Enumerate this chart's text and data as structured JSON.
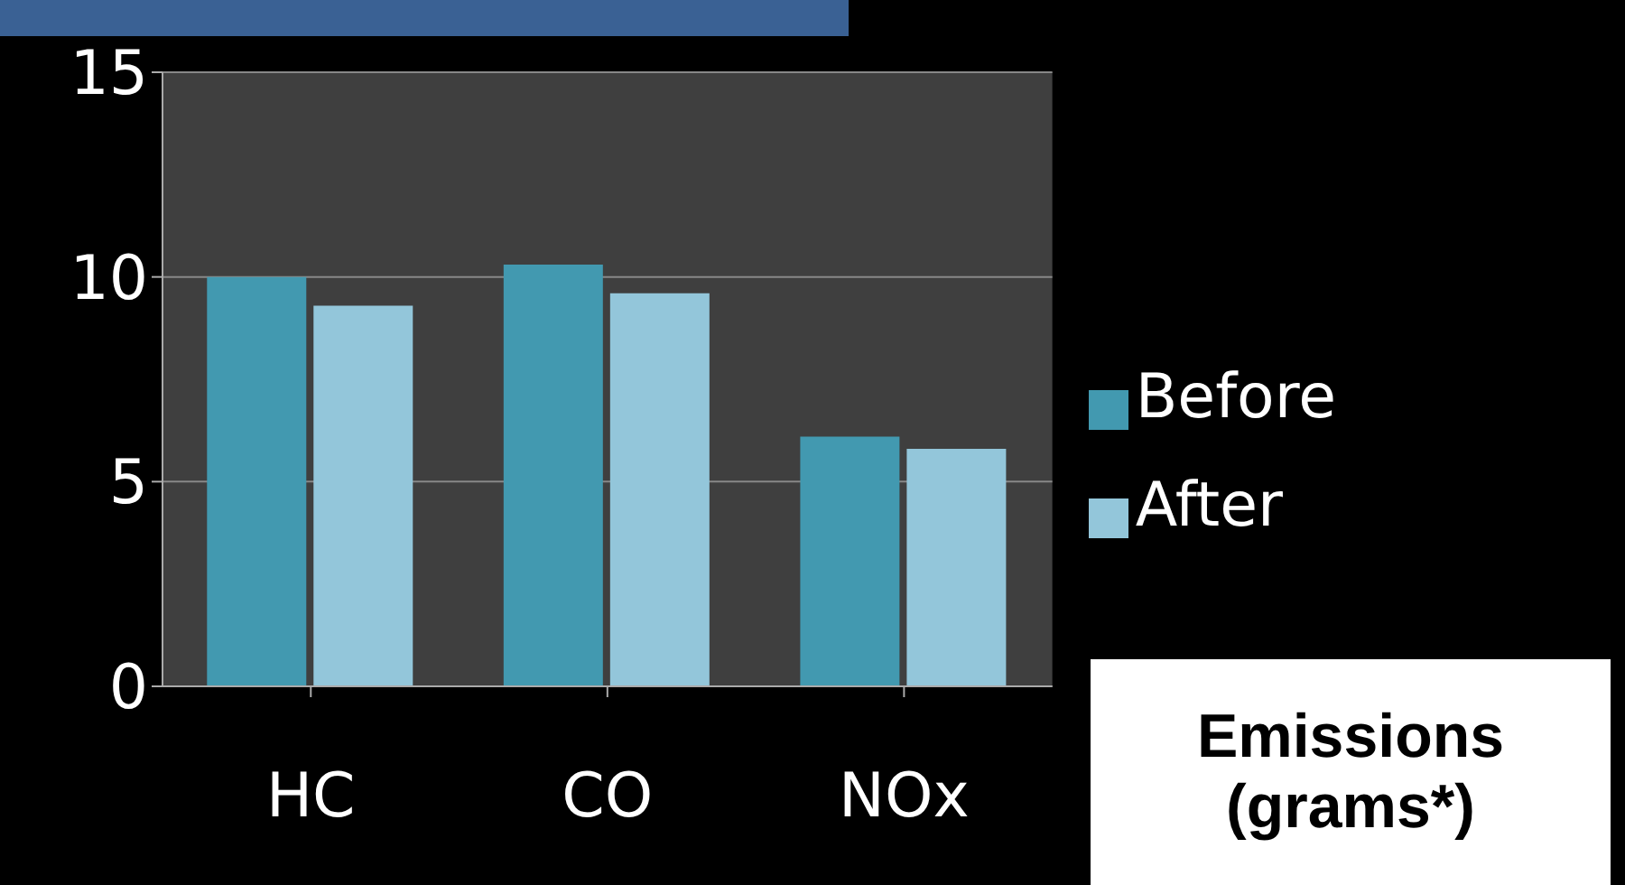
{
  "chart_data": {
    "type": "bar",
    "categories": [
      "HC",
      "CO",
      "NOx"
    ],
    "series": [
      {
        "name": "Before",
        "color": "#4299b0",
        "values": [
          10,
          10.3,
          6.1
        ]
      },
      {
        "name": "After",
        "color": "#93c6da",
        "values": [
          9.3,
          9.6,
          5.8
        ]
      }
    ],
    "ylim": [
      0,
      15
    ],
    "yticks": [
      0,
      5,
      10,
      15
    ],
    "grid": "y",
    "legend": "right",
    "annotations": [
      "Emissions (grams*)"
    ]
  }
}
